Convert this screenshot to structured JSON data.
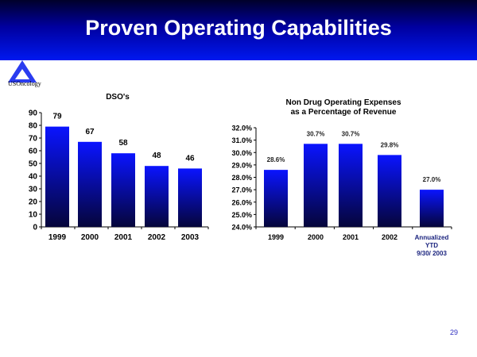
{
  "slide": {
    "title": "Proven Operating Capabilities",
    "logo_text": "USOncology",
    "page_number": "29"
  },
  "colors": {
    "bar_top": "#0a14ff",
    "bar_bottom": "#05053a",
    "title_bg": "#0000a0"
  },
  "chart_data": [
    {
      "type": "bar",
      "title": "DSO's",
      "categories": [
        "1999",
        "2000",
        "2001",
        "2002",
        "2003"
      ],
      "values": [
        79,
        67,
        58,
        48,
        46
      ],
      "data_labels": [
        "79",
        "67",
        "58",
        "48",
        "46"
      ],
      "ylim": [
        0,
        90
      ],
      "yticks": [
        "0",
        "10",
        "20",
        "30",
        "40",
        "50",
        "60",
        "70",
        "80",
        "90"
      ],
      "xlabel": "",
      "ylabel": "",
      "legend": "none"
    },
    {
      "type": "bar",
      "title": [
        "Non Drug Operating Expenses",
        "as a Percentage of Revenue"
      ],
      "categories": [
        [
          "1999"
        ],
        [
          "2000"
        ],
        [
          "2001"
        ],
        [
          "2002"
        ],
        [
          "Annualized",
          "YTD",
          "9/30/ 2003"
        ]
      ],
      "values": [
        28.6,
        30.7,
        30.7,
        29.8,
        27.0
      ],
      "data_labels": [
        "28.6%",
        "30.7%",
        "30.7%",
        "29.8%",
        "27.0%"
      ],
      "ylim": [
        24,
        32
      ],
      "yticks": [
        "24.0%",
        "25.0%",
        "26.0%",
        "27.0%",
        "28.0%",
        "29.0%",
        "30.0%",
        "31.0%",
        "32.0%"
      ],
      "xlabel": "",
      "ylabel": "",
      "legend": "none"
    }
  ]
}
